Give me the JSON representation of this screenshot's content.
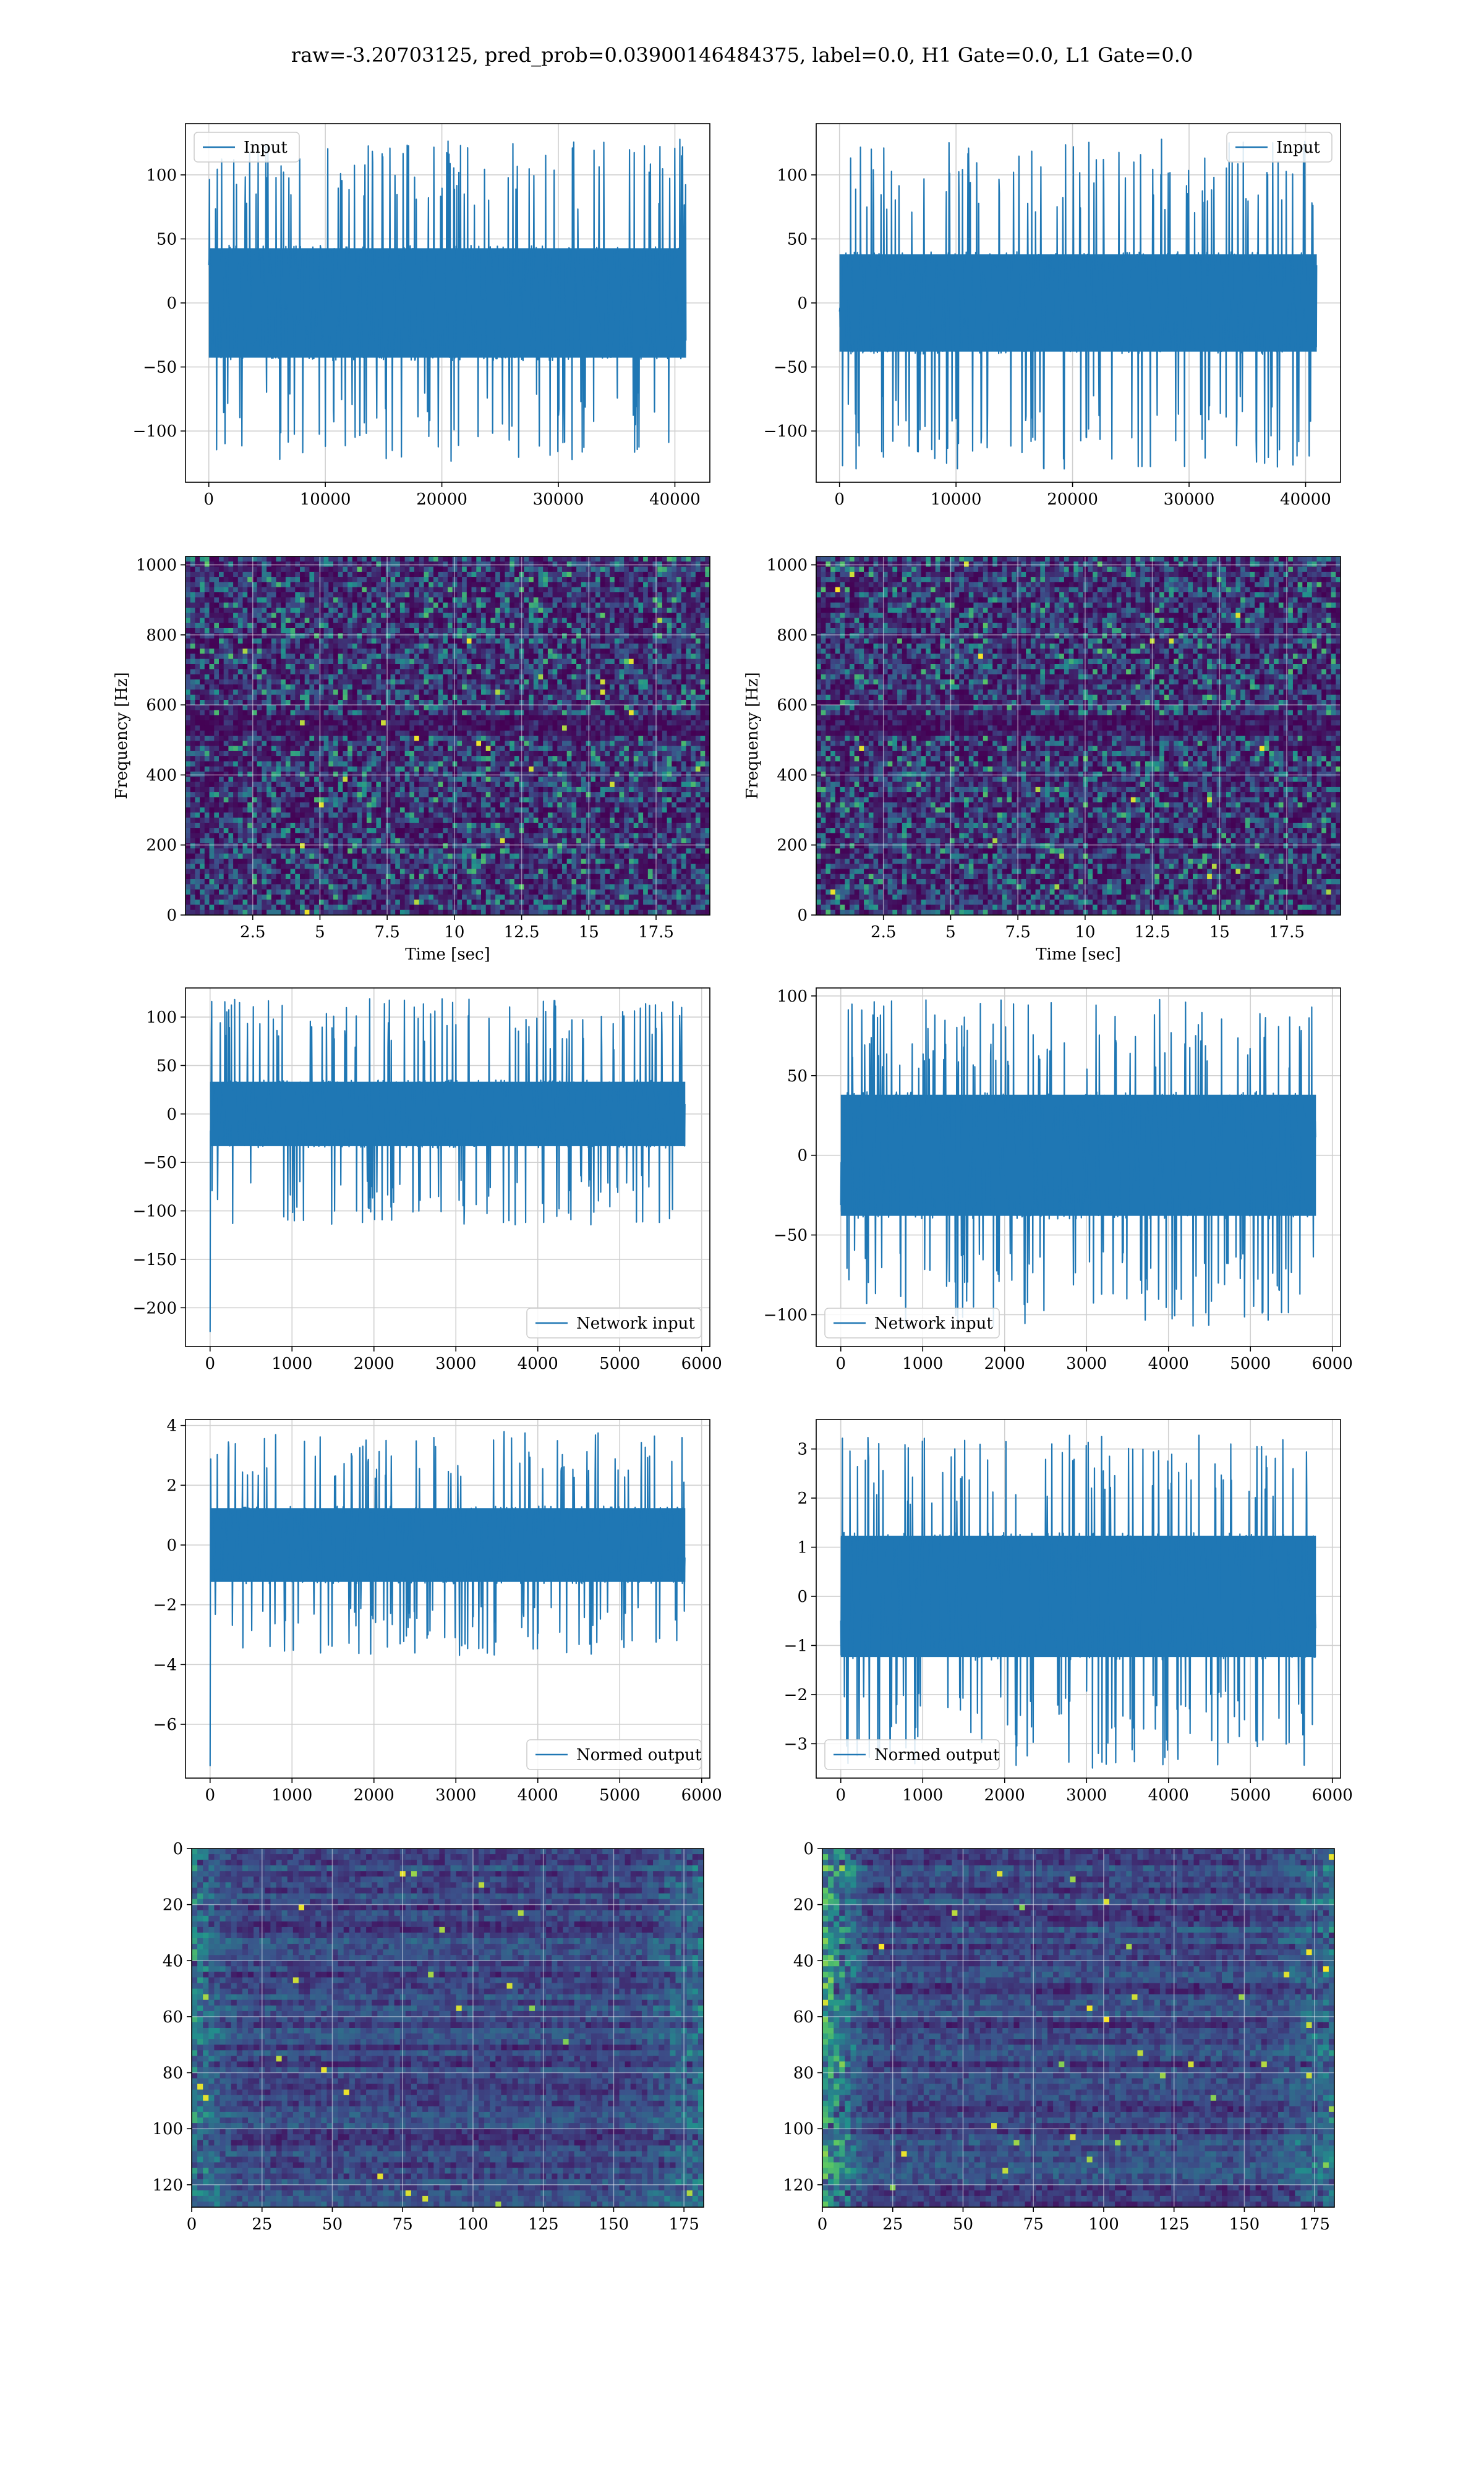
{
  "figure": {
    "suptitle": "raw=-3.20703125, pred_prob=0.03900146484375, label=0.0, H1 Gate=0.0, L1 Gate=0.0"
  },
  "colors": {
    "line": "#1f77b4",
    "grid": "#d0d0d0",
    "viridis_dark": "#440154",
    "viridis_mid": "#3b528b",
    "viridis_teal": "#21918c",
    "viridis_green": "#5ec962",
    "viridis_yellow": "#fde725"
  },
  "chart_data": [
    {
      "id": "h1-input",
      "type": "line",
      "legend": "Input",
      "legend_loc": "top-left",
      "xlim": [
        -2000,
        43000
      ],
      "ylim": [
        -140,
        140
      ],
      "xticks": [
        0,
        10000,
        20000,
        30000,
        40000
      ],
      "yticks": [
        -100,
        -50,
        0,
        50,
        100
      ],
      "n_points": 40960,
      "band": [
        -45,
        45
      ],
      "spike_range": [
        -125,
        130
      ]
    },
    {
      "id": "l1-input",
      "type": "line",
      "legend": "Input",
      "legend_loc": "top-right",
      "xlim": [
        -2000,
        43000
      ],
      "ylim": [
        -140,
        140
      ],
      "xticks": [
        0,
        10000,
        20000,
        30000,
        40000
      ],
      "yticks": [
        -100,
        -50,
        0,
        50,
        100
      ],
      "n_points": 40960,
      "band": [
        -40,
        40
      ],
      "spike_range": [
        -130,
        128
      ]
    },
    {
      "id": "h1-spectrogram",
      "type": "heatmap",
      "xlabel": "Time [sec]",
      "ylabel": "Frequency [Hz]",
      "xlim": [
        0,
        19.5
      ],
      "ylim": [
        0,
        1024
      ],
      "xticks": [
        2.5,
        5.0,
        7.5,
        10.0,
        12.5,
        15.0,
        17.5
      ],
      "yticks": [
        0,
        200,
        400,
        600,
        800,
        1000
      ],
      "colormap": "viridis"
    },
    {
      "id": "l1-spectrogram",
      "type": "heatmap",
      "xlabel": "Time [sec]",
      "ylabel": "Frequency [Hz]",
      "xlim": [
        0,
        19.5
      ],
      "ylim": [
        0,
        1024
      ],
      "xticks": [
        2.5,
        5.0,
        7.5,
        10.0,
        12.5,
        15.0,
        17.5
      ],
      "yticks": [
        0,
        200,
        400,
        600,
        800,
        1000
      ],
      "colormap": "viridis"
    },
    {
      "id": "h1-network-input",
      "type": "line",
      "legend": "Network input",
      "legend_loc": "lower-right",
      "xlim": [
        -300,
        6100
      ],
      "ylim": [
        -240,
        130
      ],
      "xticks": [
        0,
        1000,
        2000,
        3000,
        4000,
        5000,
        6000
      ],
      "yticks": [
        -200,
        -150,
        -100,
        -50,
        0,
        50,
        100
      ],
      "n_points": 5800,
      "band": [
        -35,
        35
      ],
      "spike_range": [
        -115,
        120
      ],
      "first_value": -225
    },
    {
      "id": "l1-network-input",
      "type": "line",
      "legend": "Network input",
      "legend_loc": "lower-left",
      "xlim": [
        -300,
        6100
      ],
      "ylim": [
        -120,
        105
      ],
      "xticks": [
        0,
        1000,
        2000,
        3000,
        4000,
        5000,
        6000
      ],
      "yticks": [
        -100,
        -50,
        0,
        50,
        100
      ],
      "n_points": 5800,
      "band": [
        -40,
        40
      ],
      "spike_range": [
        -108,
        98
      ]
    },
    {
      "id": "h1-normed-output",
      "type": "line",
      "legend": "Normed output",
      "legend_loc": "lower-right",
      "xlim": [
        -300,
        6100
      ],
      "ylim": [
        -7.8,
        4.2
      ],
      "xticks": [
        0,
        1000,
        2000,
        3000,
        4000,
        5000,
        6000
      ],
      "yticks": [
        -6,
        -4,
        -2,
        0,
        2,
        4
      ],
      "n_points": 5800,
      "band": [
        -1.3,
        1.3
      ],
      "spike_range": [
        -3.7,
        3.8
      ],
      "first_value": -7.4
    },
    {
      "id": "l1-normed-output",
      "type": "line",
      "legend": "Normed output",
      "legend_loc": "lower-left",
      "xlim": [
        -300,
        6100
      ],
      "ylim": [
        -3.7,
        3.6
      ],
      "xticks": [
        0,
        1000,
        2000,
        3000,
        4000,
        5000,
        6000
      ],
      "yticks": [
        -3,
        -2,
        -1,
        0,
        1,
        2,
        3
      ],
      "n_points": 5800,
      "band": [
        -1.3,
        1.3
      ],
      "spike_range": [
        -3.5,
        3.3
      ]
    },
    {
      "id": "h1-feature-map",
      "type": "heatmap",
      "xlim": [
        0,
        182
      ],
      "ylim": [
        128,
        0
      ],
      "xticks": [
        0,
        25,
        50,
        75,
        100,
        125,
        150,
        175
      ],
      "yticks": [
        0,
        20,
        40,
        60,
        80,
        100,
        120
      ],
      "colormap": "viridis",
      "rows": 128,
      "cols": 182
    },
    {
      "id": "l1-feature-map",
      "type": "heatmap",
      "xlim": [
        0,
        182
      ],
      "ylim": [
        128,
        0
      ],
      "xticks": [
        0,
        25,
        50,
        75,
        100,
        125,
        150,
        175
      ],
      "yticks": [
        0,
        20,
        40,
        60,
        80,
        100,
        120
      ],
      "colormap": "viridis",
      "rows": 128,
      "cols": 182
    }
  ]
}
